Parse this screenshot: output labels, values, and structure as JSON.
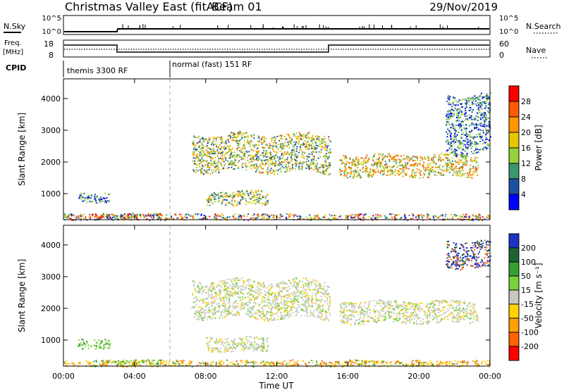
{
  "header": {
    "title": "Christmas Valley East (fitACF)",
    "beam": "Beam 01",
    "date": "29/Nov/2019"
  },
  "sky_panel": {
    "left_label": "N.Sky",
    "right_label": "N.Search",
    "tick_top": "10^5",
    "tick_bottom": "10^0"
  },
  "freq_panel": {
    "left_label_line1": "Freq.",
    "left_label_line2": "[MHz]",
    "right_label": "Nave",
    "left_ticks": [
      "18",
      "8"
    ],
    "right_ticks": [
      "60",
      "0"
    ],
    "ylim": [
      8,
      18
    ],
    "nave_ylim": [
      0,
      60
    ]
  },
  "cpid_panel": {
    "label": "CPID",
    "modes": [
      {
        "label": "themis 3300 RF",
        "start_hour": 0,
        "end_hour": 6
      },
      {
        "label": "normal (fast) 151 RF",
        "start_hour": 6,
        "end_hour": 24
      }
    ]
  },
  "axes": {
    "ylabel": "Slant Range [km]",
    "xlabel": "Time UT",
    "x_ticks": [
      "00:00",
      "04:00",
      "08:00",
      "12:00",
      "16:00",
      "20:00",
      "00:00"
    ],
    "x_tick_hours": [
      0,
      4,
      8,
      12,
      16,
      20,
      24
    ],
    "y_ticks": [
      "1000",
      "2000",
      "3000",
      "4000"
    ],
    "y_tick_values": [
      1000,
      2000,
      3000,
      4000
    ],
    "ylim": [
      180,
      4620
    ],
    "xlim_hours": [
      0,
      24
    ]
  },
  "power_colorbar": {
    "title": "Power [dB]",
    "ticks": [
      "28",
      "24",
      "20",
      "16",
      "12",
      "8",
      "4"
    ],
    "colors": [
      "#ff0000",
      "#ff5a00",
      "#ff9600",
      "#e6c800",
      "#96d23c",
      "#3c966e",
      "#1e50a0",
      "#0000ff"
    ]
  },
  "velocity_colorbar": {
    "title": "Velocity [m s⁻¹]",
    "ticks": [
      "200",
      "100",
      "50",
      "15",
      "-15",
      "-50",
      "-100",
      "-200"
    ],
    "colors": [
      "#1e32c8",
      "#1e6432",
      "#32a032",
      "#78d23c",
      "#c8c8c0",
      "#ffd200",
      "#ffa000",
      "#ff6400",
      "#ff0000"
    ]
  },
  "chart_data": {
    "type": "heatmap",
    "x_unit": "hours UT",
    "y_unit": "km",
    "power_regions": [
      {
        "t0": 0.8,
        "t1": 2.6,
        "r0": 750,
        "r1": 1050,
        "level": "low"
      },
      {
        "t0": 2.0,
        "t1": 5.5,
        "r0": 250,
        "r1": 400,
        "level": "mixed"
      },
      {
        "t0": 7.2,
        "t1": 15.0,
        "r0": 1700,
        "r1": 2900,
        "level": "mid"
      },
      {
        "t0": 8.0,
        "t1": 11.5,
        "r0": 650,
        "r1": 1100,
        "level": "mid"
      },
      {
        "t0": 15.5,
        "t1": 23.3,
        "r0": 1550,
        "r1": 2250,
        "level": "high"
      },
      {
        "t0": 21.5,
        "t1": 24.0,
        "r0": 2300,
        "r1": 4150,
        "level": "low"
      },
      {
        "t0": 0.0,
        "t1": 24.0,
        "r0": 180,
        "r1": 380,
        "level": "ground"
      }
    ],
    "velocity_regions": [
      {
        "t0": 0.8,
        "t1": 2.6,
        "r0": 750,
        "r1": 1050,
        "level": "15 to 50"
      },
      {
        "t0": 2.0,
        "t1": 5.5,
        "r0": 250,
        "r1": 400,
        "level": "15 to 50"
      },
      {
        "t0": 7.2,
        "t1": 15.0,
        "r0": 1700,
        "r1": 2900,
        "level": "-15 to 15"
      },
      {
        "t0": 8.0,
        "t1": 11.5,
        "r0": 650,
        "r1": 1100,
        "level": "-15 to 15"
      },
      {
        "t0": 15.5,
        "t1": 23.3,
        "r0": 1550,
        "r1": 2250,
        "level": "-15 to 15"
      },
      {
        "t0": 21.5,
        "t1": 24.0,
        "r0": 3300,
        "r1": 4150,
        "level": "above 100"
      },
      {
        "t0": 0.0,
        "t1": 24.0,
        "r0": 180,
        "r1": 380,
        "level": "-50 to -15"
      }
    ]
  }
}
